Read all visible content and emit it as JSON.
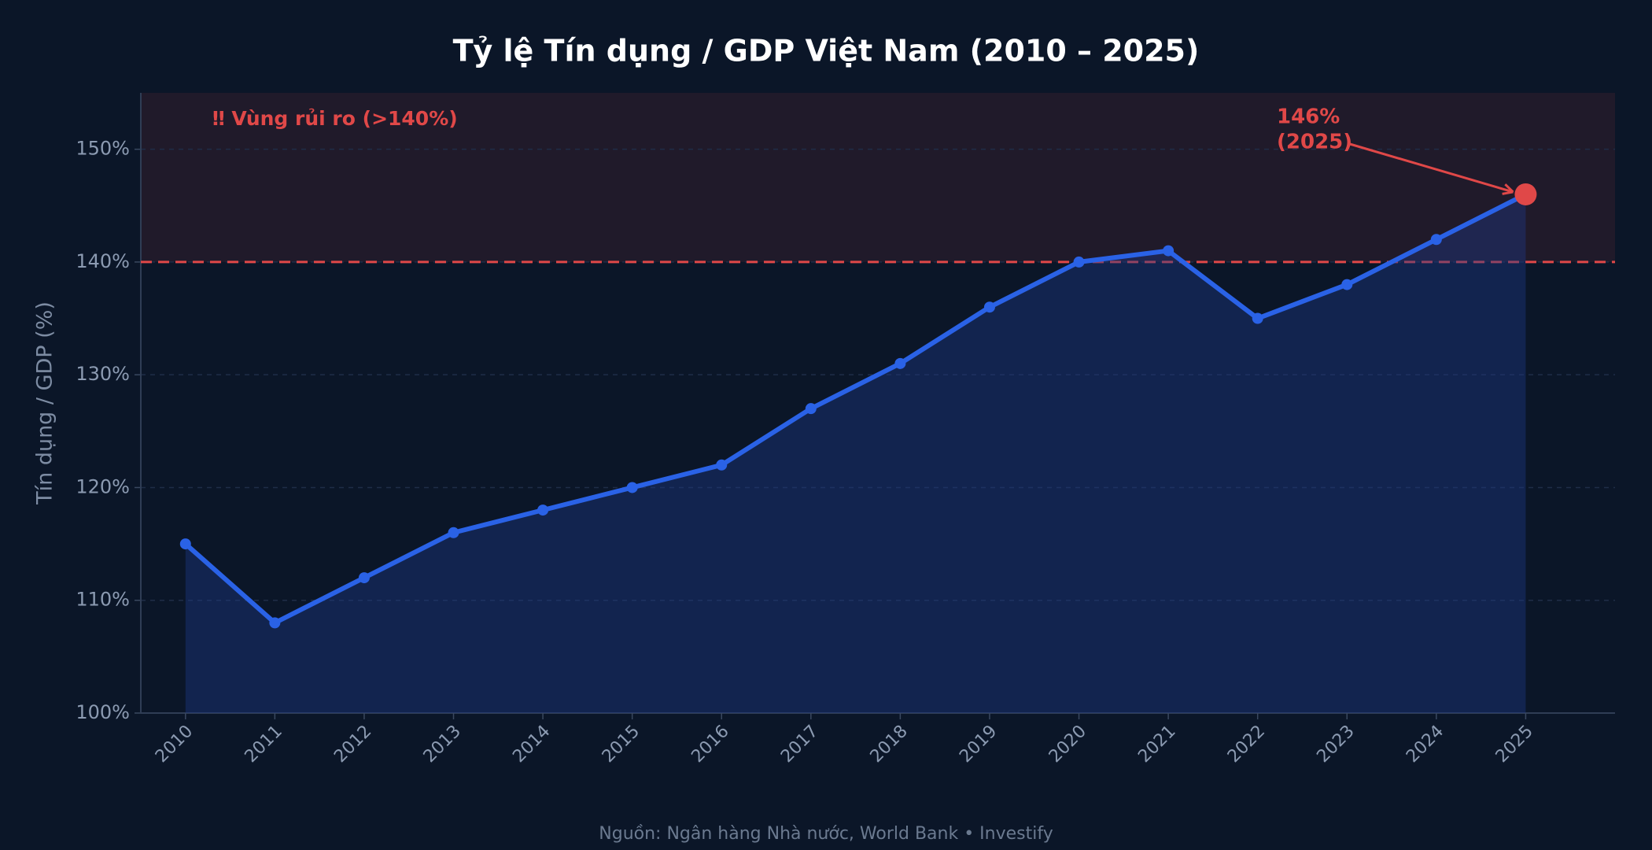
{
  "chart_data": {
    "type": "line",
    "title": "Tỷ lệ Tín dụng / GDP Việt Nam (2010 – 2025)",
    "y_label": "Tín dụng / GDP (%)",
    "x": [
      2010,
      2011,
      2012,
      2013,
      2014,
      2015,
      2016,
      2017,
      2018,
      2019,
      2020,
      2021,
      2022,
      2023,
      2024,
      2025
    ],
    "series": [
      {
        "name": "Tín dụng / GDP",
        "color": "#2a62e6",
        "values": [
          115,
          108,
          112,
          116,
          118,
          120,
          122,
          127,
          131,
          136,
          140,
          141,
          135,
          138,
          142,
          146
        ]
      }
    ],
    "xlim": [
      2009.5,
      2026
    ],
    "xticks": [
      2010,
      2011,
      2012,
      2013,
      2014,
      2015,
      2016,
      2017,
      2018,
      2019,
      2020,
      2021,
      2022,
      2023,
      2024,
      2025
    ],
    "ylim": [
      100,
      155
    ],
    "yticks": [
      {
        "value": 100,
        "label": "100%"
      },
      {
        "value": 110,
        "label": "110%"
      },
      {
        "value": 120,
        "label": "120%"
      },
      {
        "value": 130,
        "label": "130%"
      },
      {
        "value": 140,
        "label": "140%"
      },
      {
        "value": 150,
        "label": "150%"
      }
    ],
    "grid": true,
    "threshold": 140,
    "threshold_color": "#e04848",
    "threshold_label": "‼ Vùng rủi ro (>140%)",
    "annotation": [
      "146%",
      "(2025)"
    ],
    "source": "Nguồn: Ngân hàng Nhà nước, World Bank  •  Investify"
  }
}
